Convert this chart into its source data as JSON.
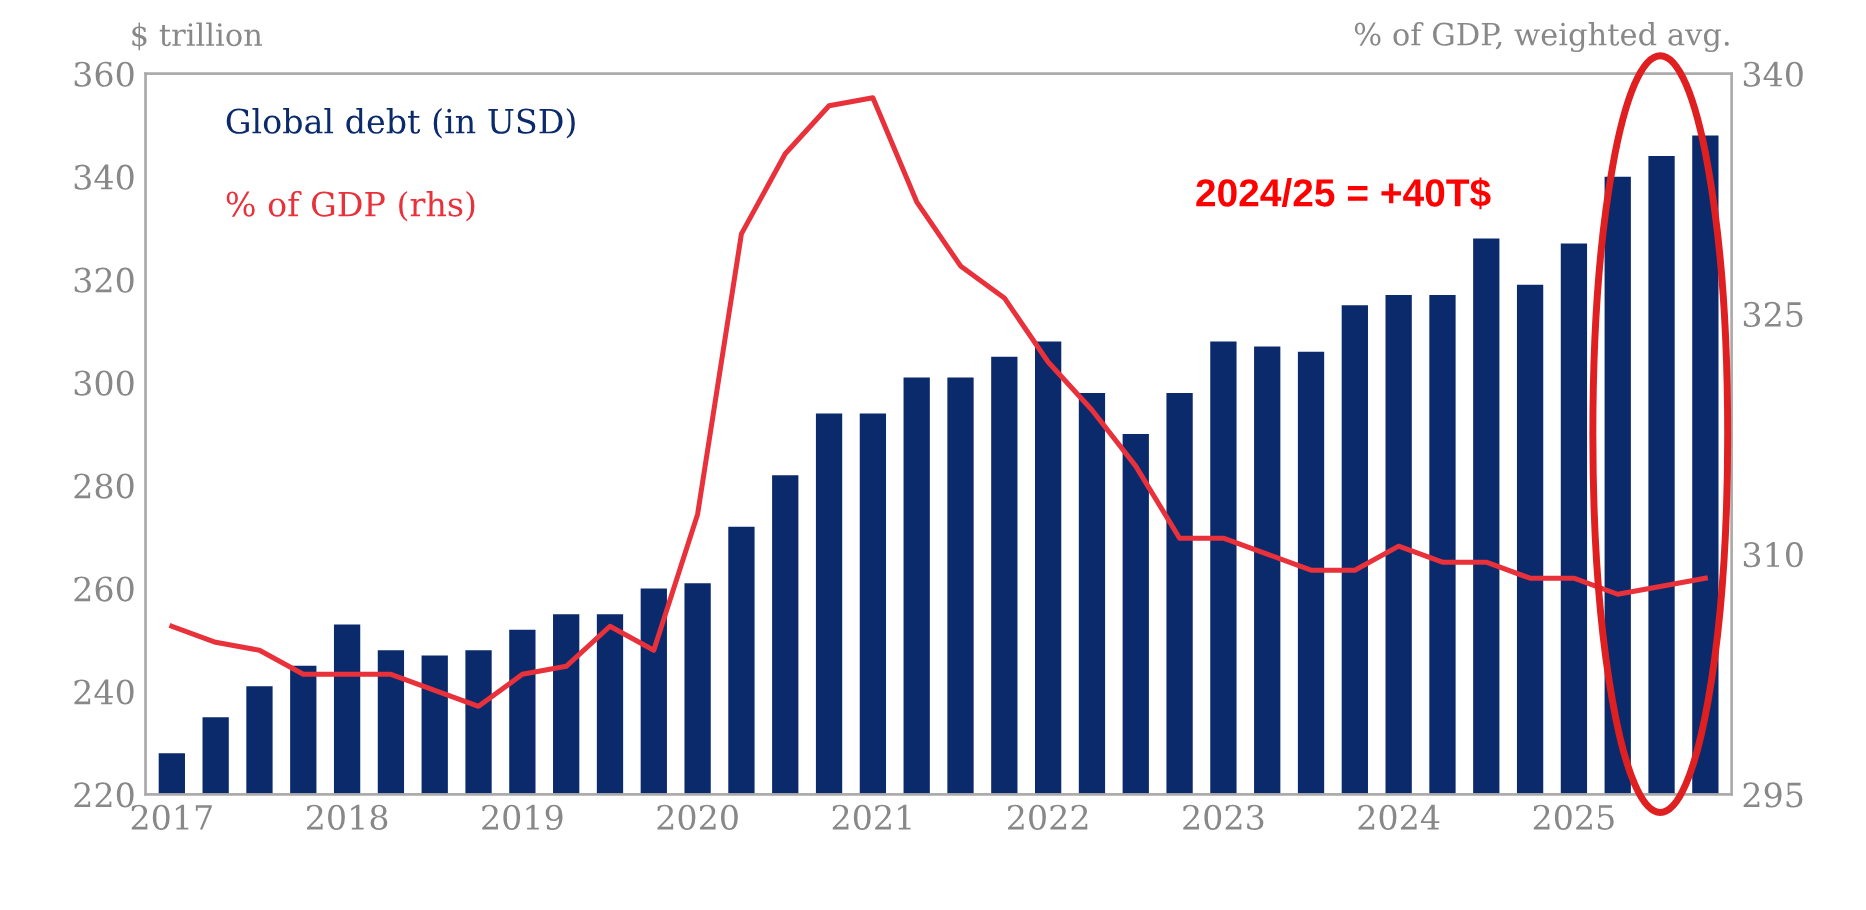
{
  "chart_data": {
    "type": "bar",
    "ylabel": "$ trillion",
    "y2label": "% of GDP, weighted avg.",
    "categories": [
      "2017",
      null,
      null,
      null,
      "2018",
      null,
      null,
      null,
      "2019",
      null,
      null,
      null,
      "2020",
      null,
      null,
      null,
      "2021",
      null,
      null,
      null,
      "2022",
      null,
      null,
      null,
      "2023",
      null,
      null,
      null,
      "2024",
      null,
      null,
      null,
      "2025",
      null,
      null,
      null
    ],
    "series": [
      {
        "name": "Global debt (in USD)",
        "color": "#0b2a6b",
        "values": [
          228,
          235,
          241,
          245,
          253,
          248,
          247,
          248,
          252,
          255,
          255,
          260,
          261,
          272,
          282,
          294,
          294,
          301,
          301,
          305,
          308,
          298,
          290,
          298,
          308,
          307,
          306,
          315,
          317,
          317,
          328,
          319,
          327,
          340,
          344,
          348
        ]
      },
      {
        "name": "% of GDP (rhs)",
        "type": "line",
        "axis": "y2",
        "color": "#e8313a",
        "values": [
          305.5,
          304.5,
          304,
          302.5,
          302.5,
          302.5,
          301.5,
          300.5,
          302.5,
          303,
          305.5,
          304,
          312.5,
          330,
          335,
          338,
          338.5,
          332,
          328,
          326,
          322,
          319,
          315.5,
          311,
          311,
          310,
          309,
          309,
          310.5,
          309.5,
          309.5,
          308.5,
          308.5,
          307.5,
          308,
          308.5
        ]
      }
    ],
    "ylim": [
      220,
      360
    ],
    "yticks": [
      220,
      240,
      260,
      280,
      300,
      320,
      340,
      360
    ],
    "y2lim": [
      295,
      340
    ],
    "y2ticks": [
      295,
      310,
      325,
      340
    ],
    "legend": "top left",
    "grid": false,
    "annotations": [
      "2024/25 = +40T$"
    ]
  }
}
